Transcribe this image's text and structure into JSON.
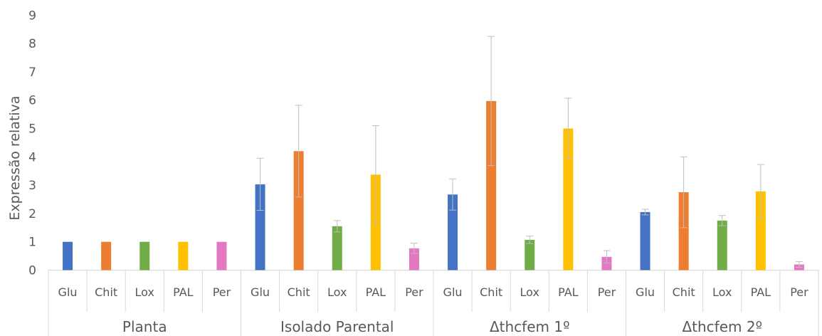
{
  "chart_data": {
    "type": "bar",
    "title": "",
    "ylabel": "Expressão relativa",
    "xlabel": "",
    "ylim": [
      0,
      9
    ],
    "yticks": [
      0,
      1,
      2,
      3,
      4,
      5,
      6,
      7,
      8,
      9
    ],
    "grid": false,
    "legend": "none",
    "genes": [
      "Glu",
      "Chit",
      "Lox",
      "PAL",
      "Per"
    ],
    "colors": {
      "Glu": "#4472c4",
      "Chit": "#ed7d31",
      "Lox": "#70ad47",
      "PAL": "#ffc000",
      "Per": "#e377c2"
    },
    "groups": [
      {
        "label": "Planta",
        "values": [
          1.0,
          1.0,
          1.0,
          1.0,
          1.0
        ],
        "errors": [
          0,
          0,
          0,
          0,
          0
        ]
      },
      {
        "label": "Isolado Parental",
        "values": [
          3.03,
          4.2,
          1.55,
          3.37,
          0.77
        ],
        "errors": [
          0.92,
          1.62,
          0.2,
          1.73,
          0.18
        ]
      },
      {
        "label": "Δthcfem 1º",
        "values": [
          2.67,
          5.97,
          1.07,
          5.0,
          0.47
        ],
        "errors": [
          0.55,
          2.28,
          0.13,
          1.07,
          0.22
        ]
      },
      {
        "label": "Δthcfem  2º",
        "values": [
          2.05,
          2.75,
          1.75,
          2.78,
          0.2
        ],
        "errors": [
          0.1,
          1.25,
          0.18,
          0.95,
          0.1
        ]
      }
    ]
  }
}
